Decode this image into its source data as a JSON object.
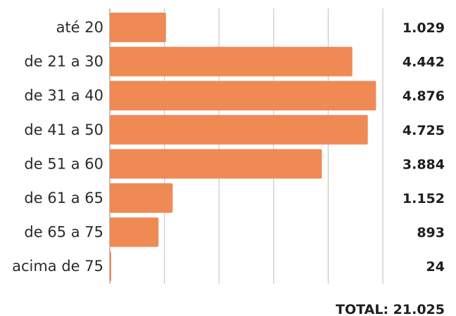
{
  "chart_data": {
    "type": "bar",
    "orientation": "horizontal",
    "categories": [
      "até 20",
      "de 21 a 30",
      "de 31 a 40",
      "de 41 a 50",
      "de 51 a 60",
      "de 61 a 65",
      "de 65 a 75",
      "acima de 75"
    ],
    "values": [
      1029,
      4442,
      4876,
      4725,
      3884,
      1152,
      893,
      24
    ],
    "value_labels": [
      "1.029",
      "4.442",
      "4.876",
      "4.725",
      "3.884",
      "1.152",
      "893",
      "24"
    ],
    "total_label": "TOTAL: 21.025",
    "xlim": [
      0,
      5000
    ],
    "grid": true,
    "bar_color": "#ef8a55",
    "grid_color": "#c9c9c9"
  }
}
